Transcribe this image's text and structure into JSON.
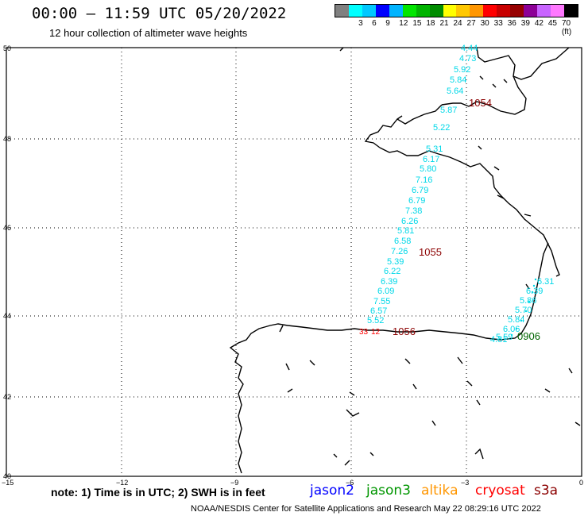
{
  "header": {
    "title": "00:00 – 11:59 UTC 05/20/2022",
    "subtitle": "12 hour collection of altimeter wave heights"
  },
  "colorbar": {
    "colors": [
      "#808080",
      "#00ffff",
      "#00c8ff",
      "#0000ff",
      "#00b4ff",
      "#00e600",
      "#00b400",
      "#008c00",
      "#ffff00",
      "#ffc800",
      "#ff9600",
      "#ff0000",
      "#c80000",
      "#960000",
      "#8c0096",
      "#c864ff",
      "#ff78ff",
      "#000000"
    ],
    "labels": [
      "3",
      "6",
      "9",
      "12",
      "15",
      "18",
      "21",
      "24",
      "27",
      "30",
      "33",
      "36",
      "39",
      "42",
      "45",
      "70 (ft)"
    ]
  },
  "axes": {
    "lat_labels": [
      "50",
      "48",
      "46",
      "44",
      "42",
      "40"
    ],
    "lon_labels": [
      "−15",
      "−12",
      "−9",
      "−6",
      "−3",
      "0"
    ]
  },
  "track_labels": {
    "jason3_time": "0906",
    "cryosat_times": [
      "1054",
      "1055",
      "1056"
    ]
  },
  "tracks": {
    "color": "#00d8e8",
    "track_a": [
      "4.44",
      "4.73",
      "5.92",
      "5.84",
      "5.64",
      "5.87",
      "5.22",
      "5.31",
      "6.17",
      "5.80",
      "7.16",
      "6.79",
      "6.79",
      "7.38",
      "6.26",
      "5.81",
      "6.58",
      "7.26",
      "5.39",
      "6.22",
      "6.39",
      "6.09",
      "7.55",
      "6.57",
      "5.52"
    ],
    "track_b": [
      "6.31",
      "6.39",
      "5.86",
      "5.70",
      "5.84",
      "6.06",
      "5.59",
      "4.81"
    ],
    "red_values": [
      "33",
      "12"
    ]
  },
  "footer": {
    "note": "note:  1) Time is in UTC;  2) SWH is in feet",
    "legend": [
      {
        "label": "jason2",
        "color": "#0000ff"
      },
      {
        "label": "jason3",
        "color": "#009600"
      },
      {
        "label": "altika",
        "color": "#ff9600"
      },
      {
        "label": "cryosat",
        "color": "#ff0000"
      },
      {
        "label": "s3a",
        "color": "#8b0000"
      }
    ],
    "credit": "NOAA/NESDIS Center for Satellite Applications and Research    May 22 08:29:16 UTC 2022"
  },
  "colors": {
    "cryosat_time": "#8b0000",
    "jason3_time": "#006400",
    "coast": "#000000"
  }
}
